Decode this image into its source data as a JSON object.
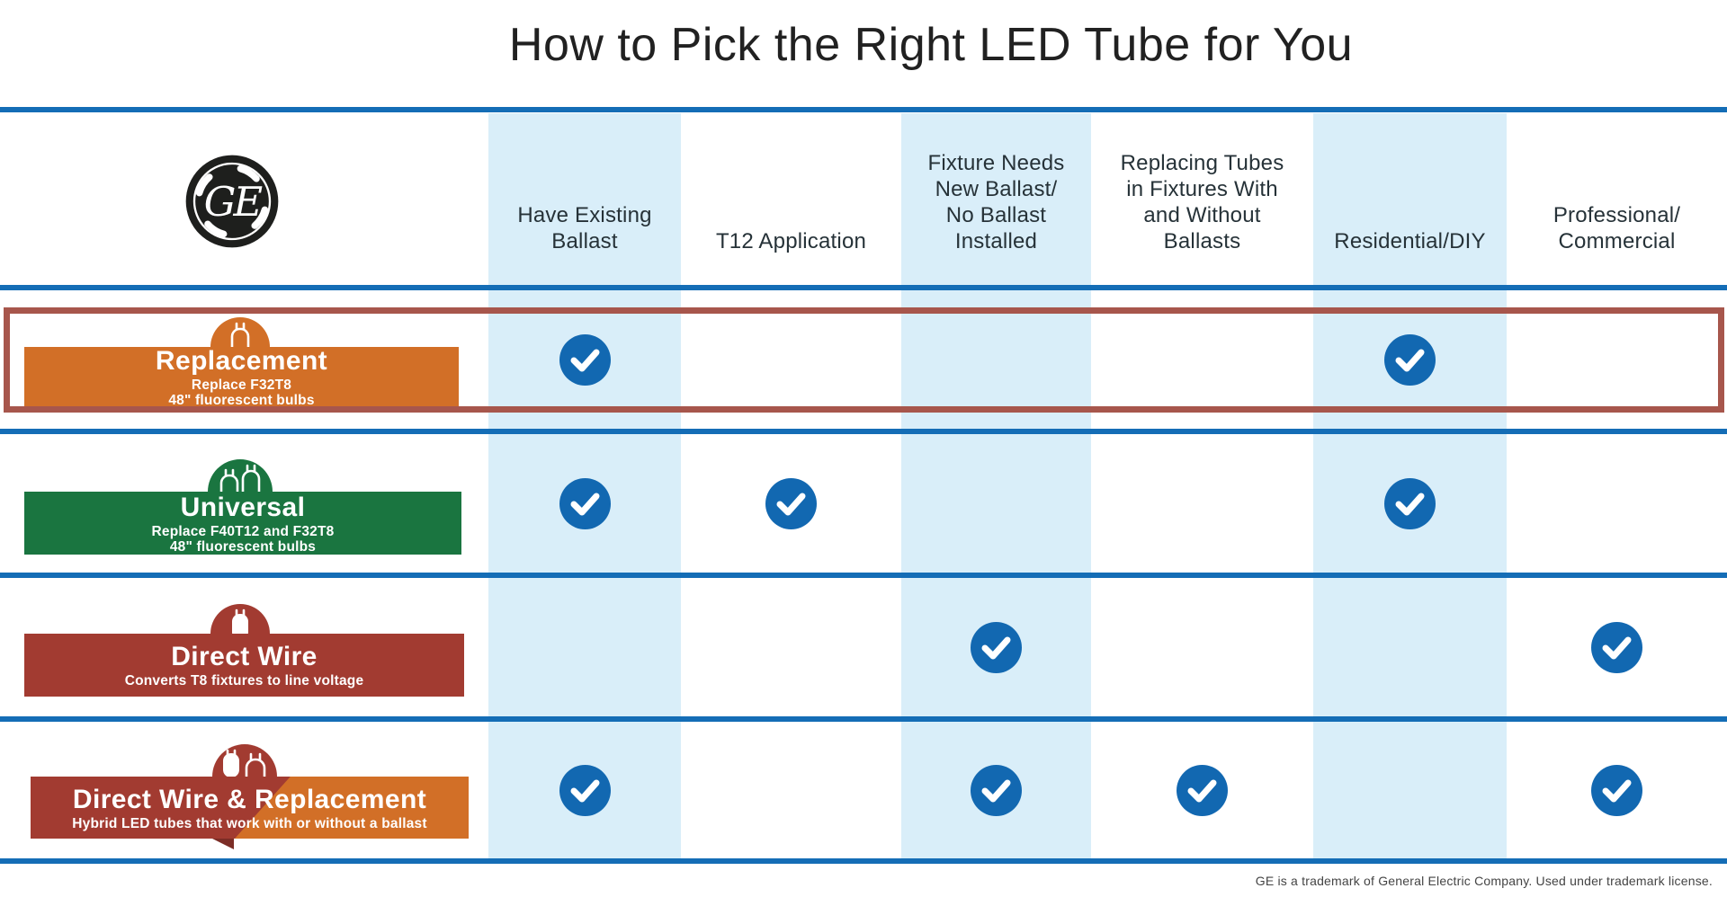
{
  "title": "How to Pick the Right LED Tube for You",
  "footer": "GE is a trademark of General Electric Company. Used under trademark license.",
  "logo": {
    "brand": "GE"
  },
  "colors": {
    "line_blue": "#146DB6",
    "shade_blue": "#D9EEF9",
    "check_blue": "#1268B1",
    "orange": "#D26F27",
    "green": "#1A7540",
    "red": "#A23B31",
    "highlight_border": "#A7564C",
    "fold_red": "#7C2D26",
    "header_text": "#263238",
    "title_text": "#212121",
    "banner_text": "#FFFFFF",
    "footer_text": "#444444",
    "logo_dark": "#1E1F1D"
  },
  "columns": [
    {
      "id": "have-existing-ballast",
      "label": "Have Existing\nBallast",
      "shaded": true
    },
    {
      "id": "t12-application",
      "label": "T12 Application",
      "shaded": false
    },
    {
      "id": "fixture-needs-new-ballast",
      "label": "Fixture Needs\nNew Ballast/\nNo Ballast\nInstalled",
      "shaded": true
    },
    {
      "id": "replacing-tubes",
      "label": "Replacing Tubes\nin Fixtures With\nand Without\nBallasts",
      "shaded": false
    },
    {
      "id": "residential-diy",
      "label": "Residential/DIY",
      "shaded": true
    },
    {
      "id": "professional-commercial",
      "label": "Professional/\nCommercial",
      "shaded": false
    }
  ],
  "rows": [
    {
      "id": "replacement",
      "name": "Replacement",
      "subtitle": "Replace F32T8\n48\" fluorescent bulbs",
      "style": "orange",
      "icon": "single-tube-outline",
      "highlighted": true,
      "checks": [
        true,
        false,
        false,
        false,
        true,
        false
      ]
    },
    {
      "id": "universal",
      "name": "Universal",
      "subtitle": "Replace F40T12 and F32T8\n48\" fluorescent bulbs",
      "style": "green",
      "icon": "double-tube-outline",
      "highlighted": false,
      "checks": [
        true,
        true,
        false,
        false,
        true,
        false
      ]
    },
    {
      "id": "direct-wire",
      "name": "Direct Wire",
      "subtitle": "Converts T8 fixtures to line voltage",
      "style": "red",
      "icon": "single-tube-filled",
      "highlighted": false,
      "checks": [
        false,
        false,
        true,
        false,
        false,
        true
      ]
    },
    {
      "id": "direct-wire-replacement",
      "name": "Direct Wire & Replacement",
      "subtitle": "Hybrid LED tubes that work with or without a ballast",
      "style": "red-orange",
      "icon": "filled-and-outline-tube",
      "highlighted": false,
      "checks": [
        true,
        false,
        true,
        true,
        false,
        true
      ]
    }
  ],
  "chart_data": {
    "type": "table",
    "title": "How to Pick the Right LED Tube for You",
    "columns": [
      "Have Existing Ballast",
      "T12 Application",
      "Fixture Needs New Ballast/No Ballast Installed",
      "Replacing Tubes in Fixtures With and Without Ballasts",
      "Residential/DIY",
      "Professional/Commercial"
    ],
    "rows": [
      {
        "name": "Replacement",
        "values": [
          true,
          false,
          false,
          false,
          true,
          false
        ]
      },
      {
        "name": "Universal",
        "values": [
          true,
          true,
          false,
          false,
          true,
          false
        ]
      },
      {
        "name": "Direct Wire",
        "values": [
          false,
          false,
          true,
          false,
          false,
          true
        ]
      },
      {
        "name": "Direct Wire & Replacement",
        "values": [
          true,
          false,
          true,
          true,
          false,
          true
        ]
      }
    ],
    "highlighted_row": "Replacement"
  }
}
